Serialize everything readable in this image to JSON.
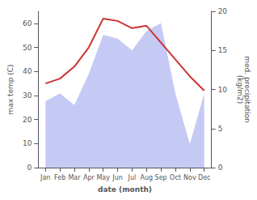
{
  "chart_data": {
    "type": "line",
    "xlabel": "date (month)",
    "ylabel": "max temp (C)",
    "y2label": "med. precipitation\n(kg/m2)",
    "categories": [
      "Jan",
      "Feb",
      "Mar",
      "Apr",
      "May",
      "Jun",
      "Jul",
      "Aug",
      "Sep",
      "Oct",
      "Nov",
      "Dec"
    ],
    "series": [
      {
        "type": "line",
        "color": "#cc3333",
        "values": [
          35,
          37,
          42,
          50,
          62,
          61,
          58,
          59,
          52,
          45,
          38,
          32
        ]
      },
      {
        "type": "area",
        "color": "#c5caf5",
        "axis": "y2",
        "values": [
          8.5,
          9.5,
          8,
          12,
          17,
          16.5,
          15,
          17.5,
          18.5,
          9.5,
          3,
          9.5
        ]
      }
    ],
    "ylim": [
      0,
      65
    ],
    "yticks": [
      0,
      10,
      20,
      30,
      40,
      50,
      60
    ],
    "y2lim": [
      0,
      20
    ],
    "y2ticks": [
      0,
      5,
      10,
      15,
      20
    ],
    "grid": false
  }
}
